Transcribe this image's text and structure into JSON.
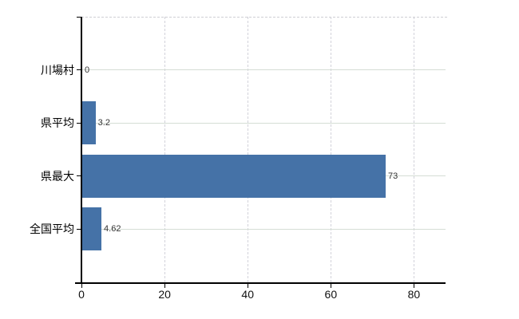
{
  "chart_data": {
    "type": "bar",
    "orientation": "horizontal",
    "title": "",
    "xlabel": "",
    "ylabel": "",
    "categories": [
      "川場村",
      "県平均",
      "県最大",
      "全国平均"
    ],
    "values": [
      0,
      3.2,
      73,
      4.62
    ],
    "value_labels": [
      "0",
      "3.2",
      "73",
      "4.62"
    ],
    "x_ticks": [
      0,
      20,
      40,
      60,
      80
    ],
    "x_tick_labels": [
      "0",
      "20",
      "40",
      "60",
      "80"
    ],
    "xlim": [
      0,
      87.6
    ],
    "grid": true,
    "legend": false,
    "bar_color": "#4572a7",
    "hgrid_color": "#d5ddd5",
    "vgrid_color": "#d2d2da",
    "axis_color": "#000000"
  }
}
